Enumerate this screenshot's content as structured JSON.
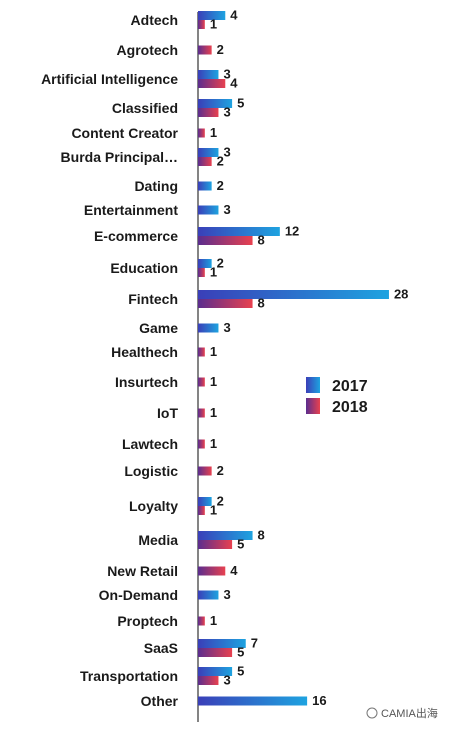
{
  "chart_data": {
    "type": "bar",
    "orientation": "horizontal",
    "categories": [
      "Adtech",
      "Agrotech",
      "Artificial Intelligence",
      "Classified",
      "Content Creator",
      "Burda Principal…",
      "Dating",
      "Entertainment",
      "E-commerce",
      "Education",
      "Fintech",
      "Game",
      "Healthech",
      "Insurtech",
      "IoT",
      "Lawtech",
      "Logistic",
      "Loyalty",
      "Media",
      "New Retail",
      "On-Demand",
      "Proptech",
      "SaaS",
      "Transportation",
      "Other"
    ],
    "series": [
      {
        "name": "2017",
        "values": [
          4,
          null,
          3,
          5,
          null,
          3,
          2,
          3,
          12,
          2,
          28,
          3,
          null,
          null,
          null,
          null,
          null,
          2,
          8,
          null,
          3,
          null,
          7,
          5,
          16
        ]
      },
      {
        "name": "2018",
        "values": [
          1,
          2,
          4,
          3,
          1,
          2,
          null,
          null,
          8,
          1,
          8,
          null,
          1,
          1,
          1,
          1,
          2,
          1,
          5,
          4,
          null,
          1,
          5,
          3,
          null
        ]
      }
    ],
    "colors": {
      "2017_start": "#3a3fb8",
      "2017_end": "#1ea3e0",
      "2018_start": "#5b2d8e",
      "2018_end": "#e8414f"
    },
    "legend": {
      "placement": "right-middle"
    },
    "grid": false
  },
  "watermark": {
    "text": "CAMIA出海"
  }
}
